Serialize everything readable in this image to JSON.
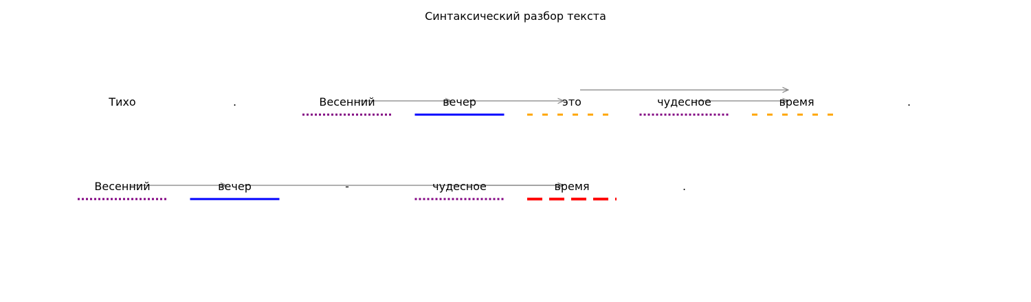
{
  "title": "Синтаксический разбор текста",
  "colors": {
    "definition": "#800080",
    "subject": "#0000ff",
    "predicate": "#ffa500",
    "predicate_bold": "#ff0000",
    "arrow": "#808080"
  },
  "sentences": [
    {
      "tokens": [
        {
          "text": "Тихо",
          "role": "none"
        },
        {
          "text": ".",
          "role": "none"
        },
        {
          "text": "Весенний",
          "role": "definition"
        },
        {
          "text": "вечер",
          "role": "subject"
        },
        {
          "text": "это",
          "role": "predicate"
        },
        {
          "text": "чудесное",
          "role": "definition"
        },
        {
          "text": "время",
          "role": "predicate"
        },
        {
          "text": ".",
          "role": "none"
        }
      ],
      "links": [
        {
          "from": 2,
          "to": 3
        },
        {
          "from": 3,
          "to": 4
        },
        {
          "from": 5,
          "to": 6
        },
        {
          "from": 4,
          "to": 6,
          "raised": true
        }
      ]
    },
    {
      "tokens": [
        {
          "text": "Весенний",
          "role": "definition"
        },
        {
          "text": "вечер",
          "role": "subject"
        },
        {
          "text": "-",
          "role": "none"
        },
        {
          "text": "чудесное",
          "role": "definition"
        },
        {
          "text": "время",
          "role": "predicate_bold"
        },
        {
          "text": ".",
          "role": "none"
        }
      ],
      "links": [
        {
          "from": 0,
          "to": 1
        },
        {
          "from": 1,
          "to": 4
        },
        {
          "from": 3,
          "to": 4
        }
      ]
    }
  ]
}
